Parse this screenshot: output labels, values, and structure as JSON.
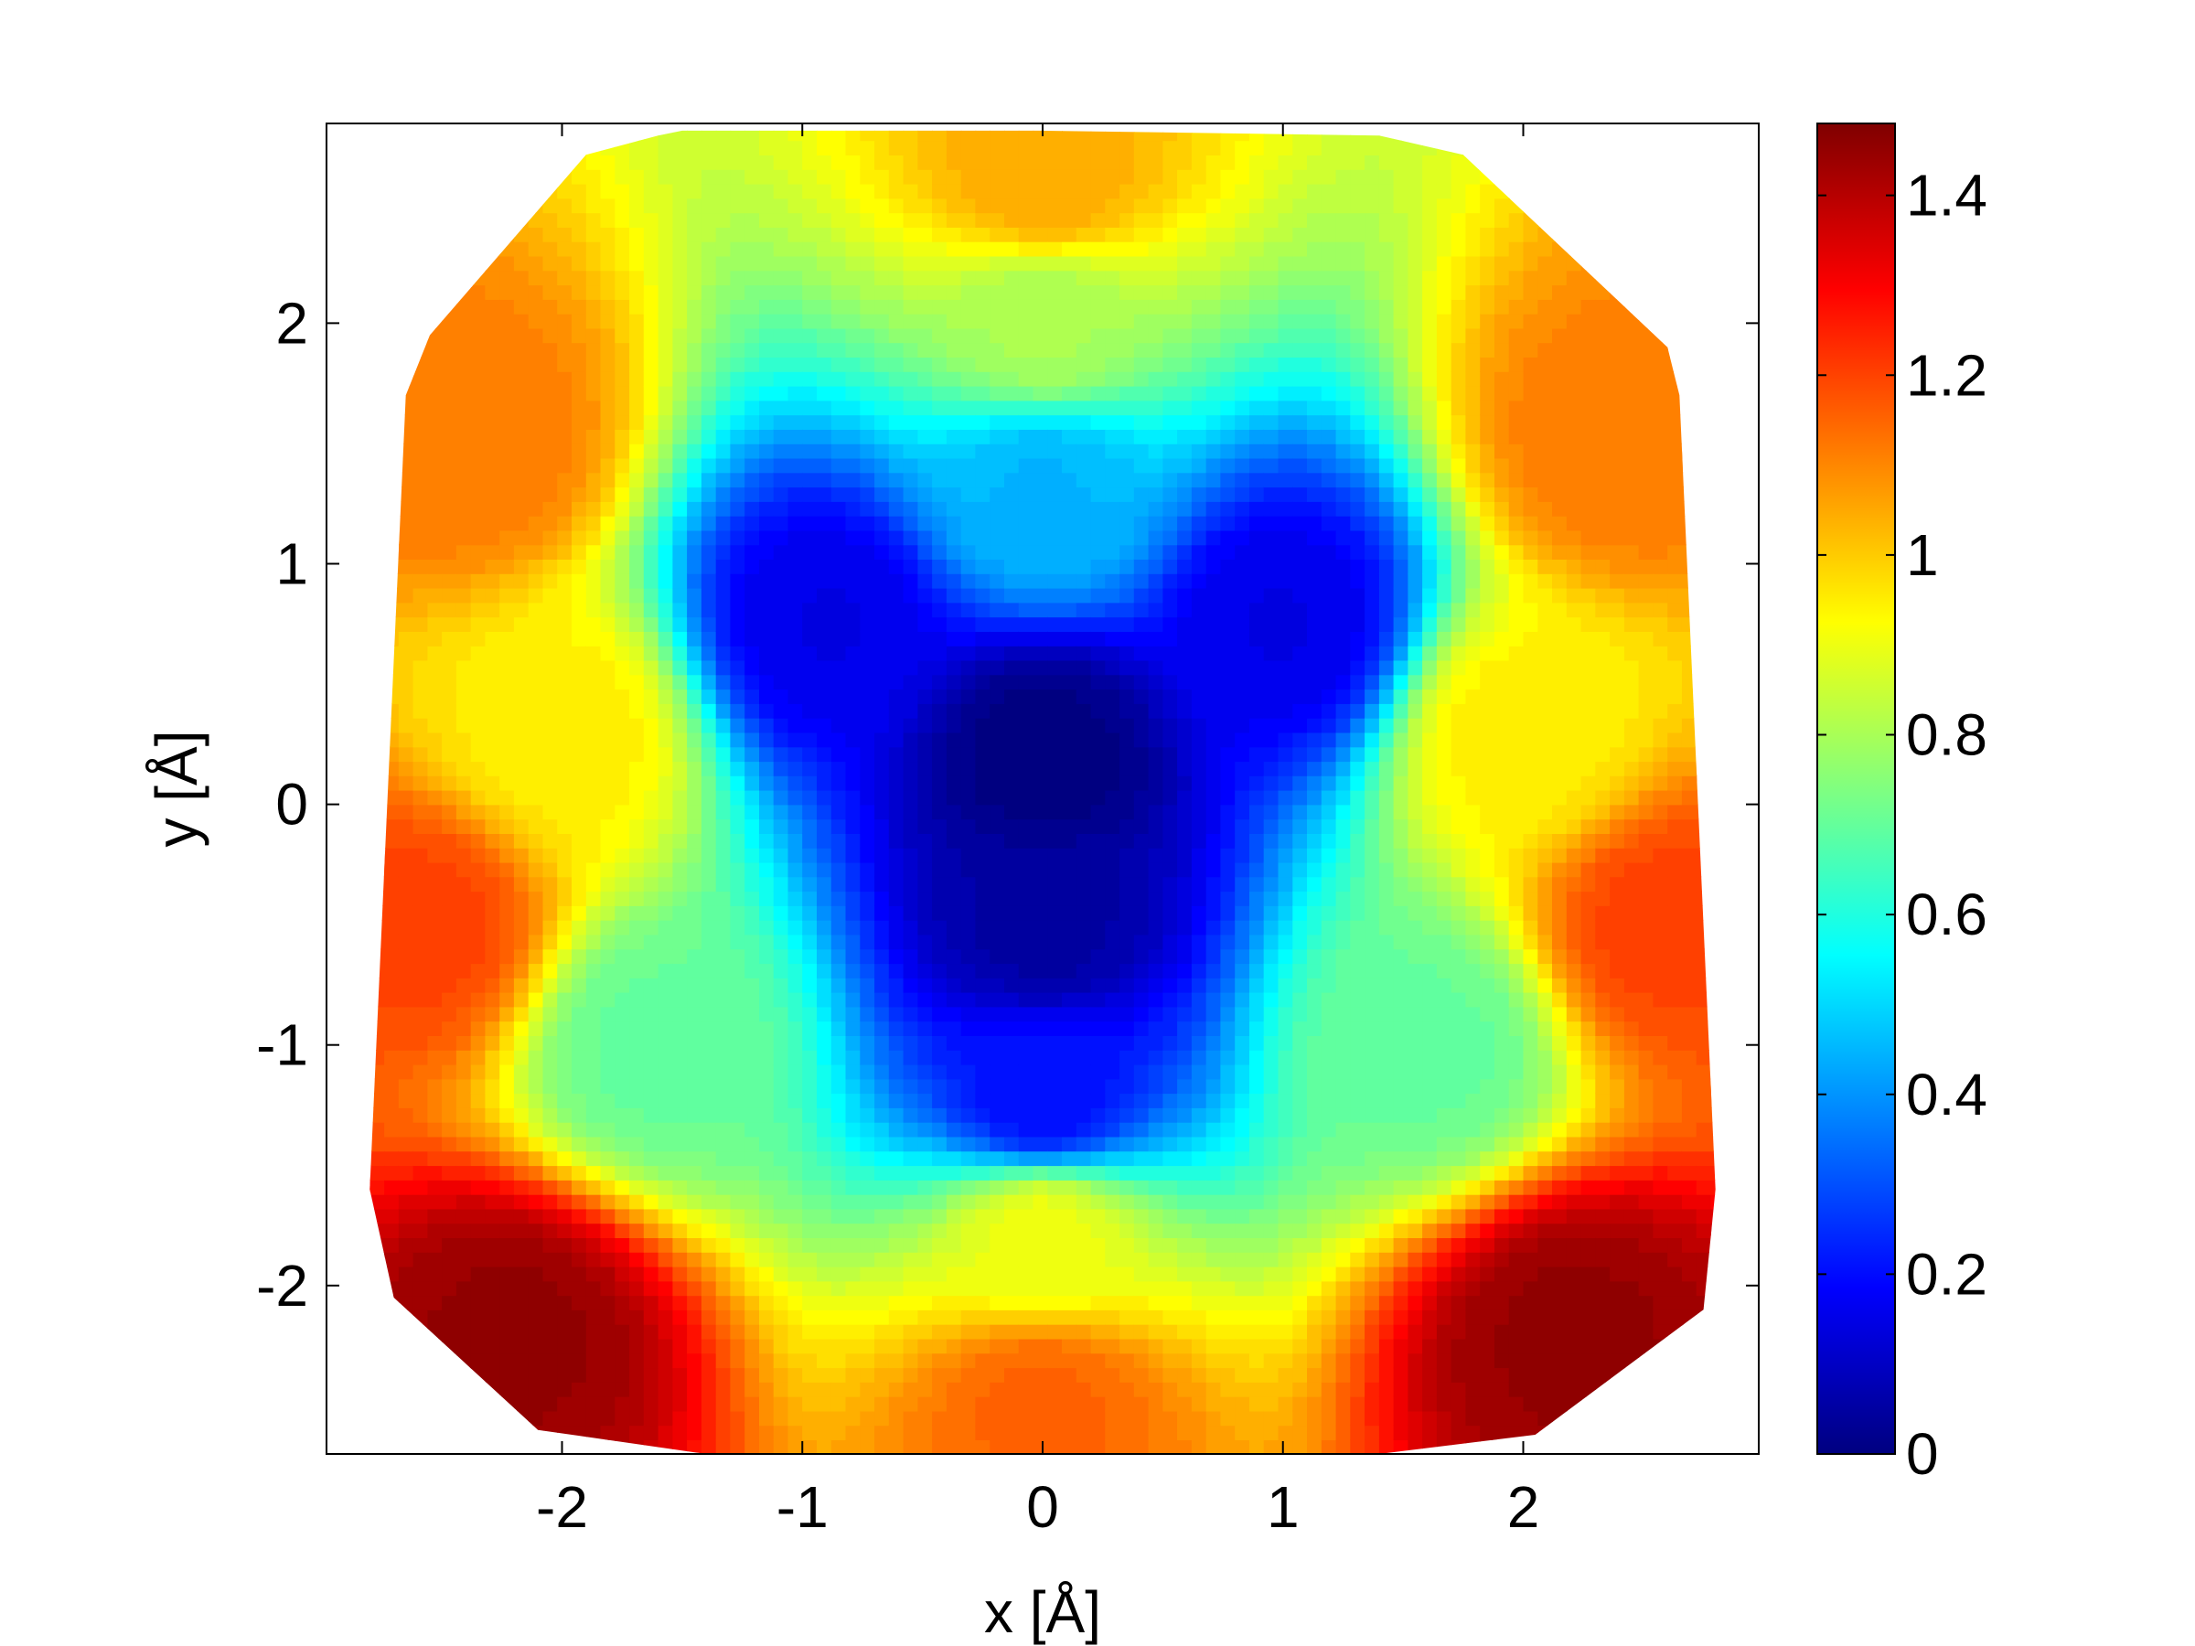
{
  "chart_data": {
    "type": "heatmap",
    "title": "",
    "xlabel": "x [Å]",
    "ylabel": "y [Å]",
    "xlim": [
      -2.98,
      2.98
    ],
    "ylim": [
      -2.7,
      2.83
    ],
    "x_ticks": [
      -2,
      -1,
      0,
      1,
      2
    ],
    "y_ticks": [
      -2,
      -1,
      0,
      1,
      2
    ],
    "colorbar": {
      "colormap": "jet",
      "clim": [
        0,
        1.48
      ],
      "ticks": [
        0,
        0.2,
        0.4,
        0.6,
        0.8,
        1,
        1.2,
        1.4
      ]
    },
    "grid": false,
    "domain_outline": [
      [
        -1.5,
        2.8
      ],
      [
        0.0,
        2.8
      ],
      [
        1.4,
        2.78
      ],
      [
        1.75,
        2.7
      ],
      [
        2.6,
        1.9
      ],
      [
        2.65,
        1.7
      ],
      [
        2.8,
        -1.6
      ],
      [
        2.75,
        -2.1
      ],
      [
        2.05,
        -2.62
      ],
      [
        1.4,
        -2.7
      ],
      [
        -1.4,
        -2.7
      ],
      [
        -2.1,
        -2.6
      ],
      [
        -2.7,
        -2.05
      ],
      [
        -2.8,
        -1.6
      ],
      [
        -2.65,
        1.7
      ],
      [
        -2.55,
        1.95
      ],
      [
        -1.9,
        2.7
      ],
      [
        -1.6,
        2.78
      ]
    ],
    "field_description": "triangular minimum centered near (0, 0.2) with vertices at (-1.2, 0.8), (1.3, 0.8), (0, -1.3); values rise outward, reaching about 1.45 in the lower-left and lower-right corners",
    "field_samples": [
      {
        "x": 0.0,
        "y": 0.2,
        "value": 0.0
      },
      {
        "x": 0.0,
        "y": -0.5,
        "value": 0.05
      },
      {
        "x": -0.9,
        "y": 0.75,
        "value": 0.15
      },
      {
        "x": 1.0,
        "y": 0.75,
        "value": 0.15
      },
      {
        "x": 0.0,
        "y": -1.2,
        "value": 0.2
      },
      {
        "x": 0.0,
        "y": 1.3,
        "value": 0.45
      },
      {
        "x": -1.6,
        "y": -1.0,
        "value": 0.7
      },
      {
        "x": 1.6,
        "y": -1.0,
        "value": 0.7
      },
      {
        "x": 0.0,
        "y": 2.0,
        "value": 0.8
      },
      {
        "x": 0.0,
        "y": -1.8,
        "value": 0.9
      },
      {
        "x": -2.0,
        "y": 0.3,
        "value": 0.95
      },
      {
        "x": 2.0,
        "y": 0.3,
        "value": 0.95
      },
      {
        "x": 0.0,
        "y": 2.6,
        "value": 1.05
      },
      {
        "x": -2.4,
        "y": 1.5,
        "value": 1.12
      },
      {
        "x": 2.4,
        "y": 1.5,
        "value": 1.12
      },
      {
        "x": 0.0,
        "y": -2.5,
        "value": 1.15
      },
      {
        "x": -2.6,
        "y": -0.5,
        "value": 1.2
      },
      {
        "x": 2.6,
        "y": -0.5,
        "value": 1.2
      },
      {
        "x": -2.2,
        "y": -2.2,
        "value": 1.45
      },
      {
        "x": 2.2,
        "y": -2.2,
        "value": 1.45
      }
    ]
  }
}
